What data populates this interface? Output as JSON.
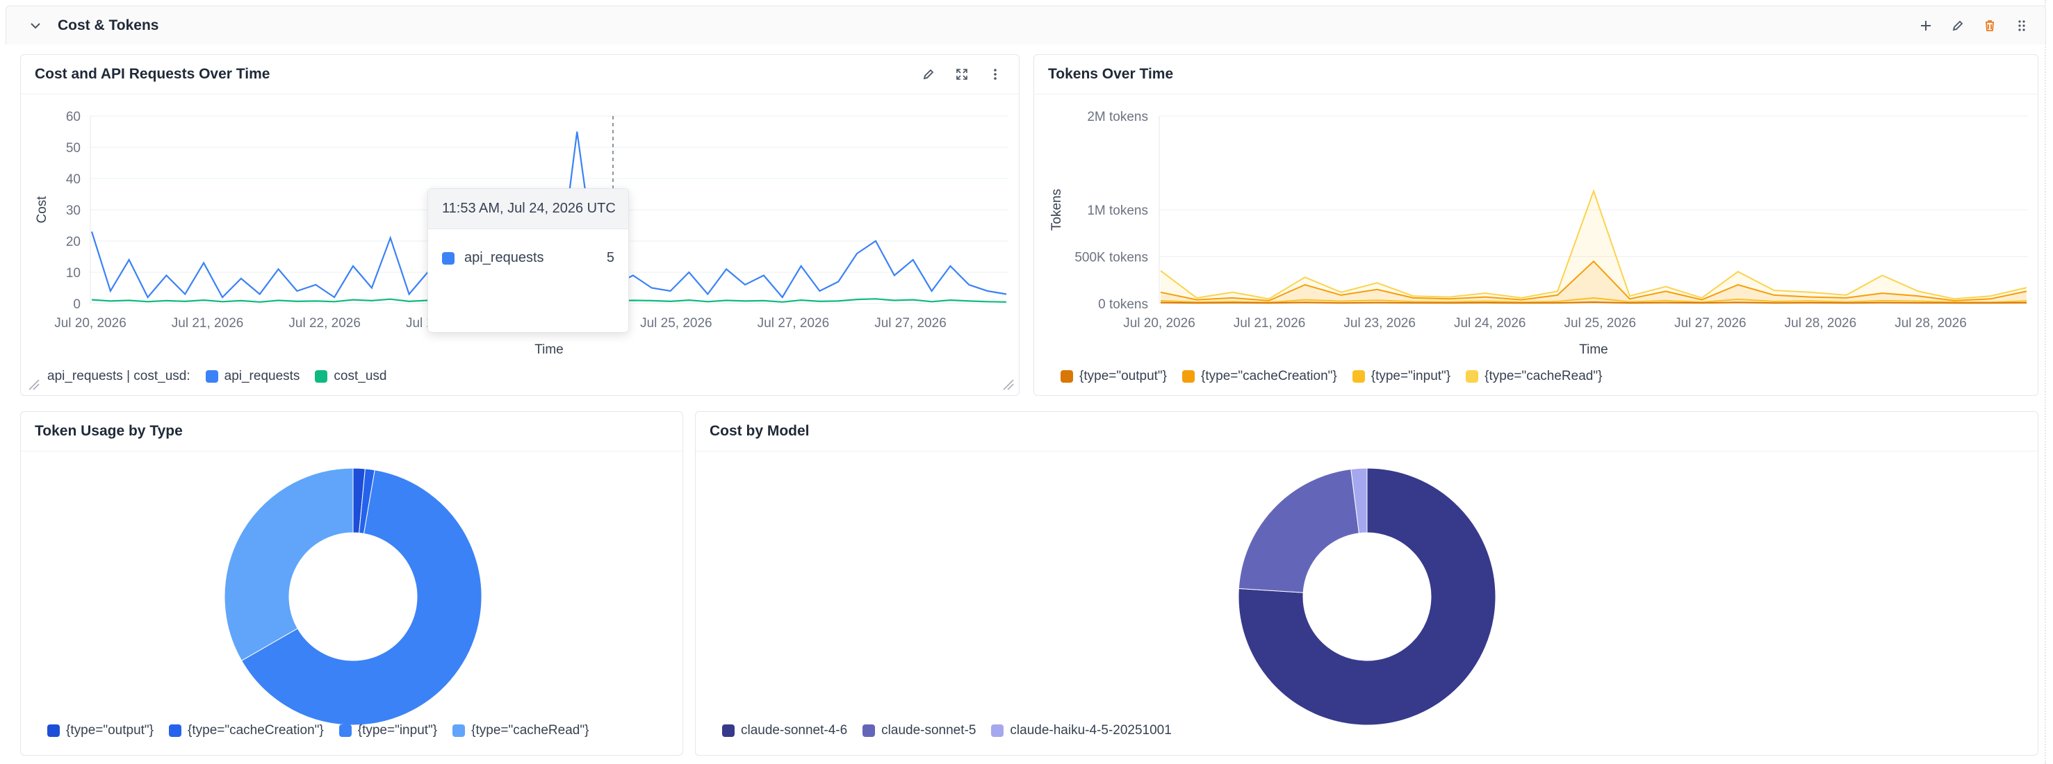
{
  "section": {
    "title": "Cost & Tokens"
  },
  "panel1": {
    "title": "Cost and API Requests Over Time",
    "ylabel": "Cost",
    "xlabel": "Time",
    "yticks": [
      "60",
      "50",
      "40",
      "30",
      "20",
      "10",
      "0"
    ],
    "xticks": [
      "Jul 20, 2026",
      "Jul 21, 2026",
      "Jul 22, 2026",
      "Jul 23, 2026",
      "Jul 24, 2026",
      "Jul 25, 2026",
      "Jul 27, 2026",
      "Jul 27, 2026"
    ],
    "legend_prefix": "api_requests | cost_usd:",
    "legend": [
      "api_requests",
      "cost_usd"
    ],
    "tooltip": {
      "time": "11:53 AM, Jul 24, 2026 UTC",
      "series": "api_requests",
      "value": "5"
    }
  },
  "panel2": {
    "title": "Tokens Over Time",
    "ylabel": "Tokens",
    "xlabel": "Time",
    "yticks": [
      "2M tokens",
      "1M tokens",
      "500K tokens",
      "0 tokens"
    ],
    "xticks": [
      "Jul 20, 2026",
      "Jul 21, 2026",
      "Jul 23, 2026",
      "Jul 24, 2026",
      "Jul 25, 2026",
      "Jul 27, 2026",
      "Jul 28, 2026",
      "Jul 28, 2026"
    ],
    "legend": [
      "{type=\"output\"}",
      "{type=\"cacheCreation\"}",
      "{type=\"input\"}",
      "{type=\"cacheRead\"}"
    ]
  },
  "panel3": {
    "title": "Token Usage by Type",
    "legend": [
      "{type=\"output\"}",
      "{type=\"cacheCreation\"}",
      "{type=\"input\"}",
      "{type=\"cacheRead\"}"
    ]
  },
  "panel4": {
    "title": "Cost by Model",
    "legend": [
      "claude-sonnet-4-6",
      "claude-sonnet-5",
      "claude-haiku-4-5-20251001"
    ]
  },
  "colors": {
    "api_requests": "#3b82f6",
    "cost_usd": "#10b981",
    "token_output": "#d97706",
    "token_cacheCreation": "#f59e0b",
    "token_input": "#fbbf24",
    "token_cacheRead": "#fcd34d",
    "pie_output": "#1d4ed8",
    "pie_cacheCreation": "#2563eb",
    "pie_input": "#3b82f6",
    "pie_cacheRead": "#60a5fa",
    "model_sonnet46": "#373a8a",
    "model_sonnet5": "#6366b8",
    "model_haiku": "#a5a8ee"
  },
  "chart_data": [
    {
      "type": "line",
      "title": "Cost and API Requests Over Time",
      "xlabel": "Time",
      "ylabel": "Cost",
      "ylim": [
        0,
        60
      ],
      "x": [
        "Jul 20",
        "Jul 20",
        "Jul 20",
        "Jul 20",
        "Jul 20",
        "Jul 20",
        "Jul 20",
        "Jul 21",
        "Jul 21",
        "Jul 21",
        "Jul 21",
        "Jul 21",
        "Jul 21",
        "Jul 22",
        "Jul 22",
        "Jul 22",
        "Jul 22",
        "Jul 22",
        "Jul 22",
        "Jul 22",
        "Jul 23",
        "Jul 23",
        "Jul 23",
        "Jul 23",
        "Jul 23",
        "Jul 23",
        "Jul 24",
        "Jul 24",
        "Jul 24",
        "Jul 24",
        "Jul 24",
        "Jul 24",
        "Jul 25",
        "Jul 25",
        "Jul 25",
        "Jul 25",
        "Jul 25",
        "Jul 26",
        "Jul 26",
        "Jul 26",
        "Jul 26",
        "Jul 26",
        "Jul 27",
        "Jul 27",
        "Jul 27",
        "Jul 27",
        "Jul 27",
        "Jul 27",
        "Jul 28",
        "Jul 28"
      ],
      "series": [
        {
          "name": "api_requests",
          "values": [
            23,
            4,
            14,
            2,
            9,
            3,
            13,
            2,
            8,
            3,
            11,
            4,
            6,
            2,
            12,
            5,
            21,
            3,
            10,
            2,
            14,
            6,
            20,
            4,
            16,
            8,
            55,
            12,
            6,
            9,
            5,
            4,
            10,
            3,
            11,
            6,
            9,
            2,
            12,
            4,
            7,
            16,
            20,
            9,
            14,
            4,
            12,
            6,
            4,
            3
          ]
        },
        {
          "name": "cost_usd",
          "values": [
            1.2,
            0.8,
            1.0,
            0.6,
            0.9,
            0.7,
            1.1,
            0.6,
            0.9,
            0.5,
            1.0,
            0.7,
            0.8,
            0.6,
            1.2,
            0.9,
            1.4,
            0.7,
            1.0,
            0.6,
            1.3,
            0.9,
            1.5,
            0.8,
            1.2,
            1.0,
            2.5,
            1.4,
            0.9,
            1.0,
            0.9,
            0.7,
            1.1,
            0.6,
            1.0,
            0.8,
            0.9,
            0.5,
            1.1,
            0.7,
            0.8,
            1.3,
            1.5,
            1.0,
            1.2,
            0.6,
            1.1,
            0.8,
            0.6,
            0.5
          ]
        }
      ]
    },
    {
      "type": "area",
      "title": "Tokens Over Time",
      "xlabel": "Time",
      "ylabel": "Tokens",
      "ylim": [
        0,
        2000000
      ],
      "x": [
        "Jul 20",
        "Jul 20",
        "Jul 21",
        "Jul 21",
        "Jul 22",
        "Jul 22",
        "Jul 23",
        "Jul 23",
        "Jul 23",
        "Jul 24",
        "Jul 24",
        "Jul 24",
        "Jul 25",
        "Jul 25",
        "Jul 25",
        "Jul 26",
        "Jul 26",
        "Jul 26",
        "Jul 27",
        "Jul 27",
        "Jul 27",
        "Jul 28",
        "Jul 28",
        "Jul 28",
        "Jul 28"
      ],
      "series": [
        {
          "name": "{type=\"output\"}",
          "values": [
            10000,
            5000,
            8000,
            6000,
            12000,
            5000,
            9000,
            7000,
            6000,
            8000,
            5000,
            7000,
            15000,
            6000,
            9000,
            7000,
            12000,
            6000,
            8000,
            5000,
            9000,
            7000,
            6000,
            5000,
            8000
          ]
        },
        {
          "name": "{type=\"cacheCreation\"}",
          "values": [
            120000,
            40000,
            60000,
            30000,
            200000,
            90000,
            150000,
            60000,
            50000,
            70000,
            40000,
            90000,
            450000,
            50000,
            130000,
            40000,
            200000,
            90000,
            70000,
            60000,
            110000,
            80000,
            30000,
            50000,
            130000
          ]
        },
        {
          "name": "{type=\"input\"}",
          "values": [
            30000,
            15000,
            20000,
            12000,
            40000,
            25000,
            35000,
            20000,
            18000,
            25000,
            15000,
            22000,
            60000,
            18000,
            30000,
            15000,
            45000,
            22000,
            28000,
            16000,
            30000,
            25000,
            15000,
            14000,
            28000
          ]
        },
        {
          "name": "{type=\"cacheRead\"}",
          "values": [
            350000,
            60000,
            120000,
            50000,
            280000,
            120000,
            220000,
            80000,
            70000,
            110000,
            60000,
            130000,
            1200000,
            80000,
            180000,
            60000,
            340000,
            140000,
            120000,
            90000,
            300000,
            130000,
            50000,
            80000,
            170000
          ]
        }
      ]
    },
    {
      "type": "pie",
      "title": "Token Usage by Type",
      "categories": [
        "{type=\"output\"}",
        "{type=\"cacheCreation\"}",
        "{type=\"input\"}",
        "{type=\"cacheRead\"}"
      ],
      "values": [
        1.5,
        1.2,
        64.0,
        33.3
      ]
    },
    {
      "type": "pie",
      "title": "Cost by Model",
      "categories": [
        "claude-sonnet-4-6",
        "claude-sonnet-5",
        "claude-haiku-4-5-20251001"
      ],
      "values": [
        76.0,
        22.0,
        2.0
      ]
    }
  ]
}
